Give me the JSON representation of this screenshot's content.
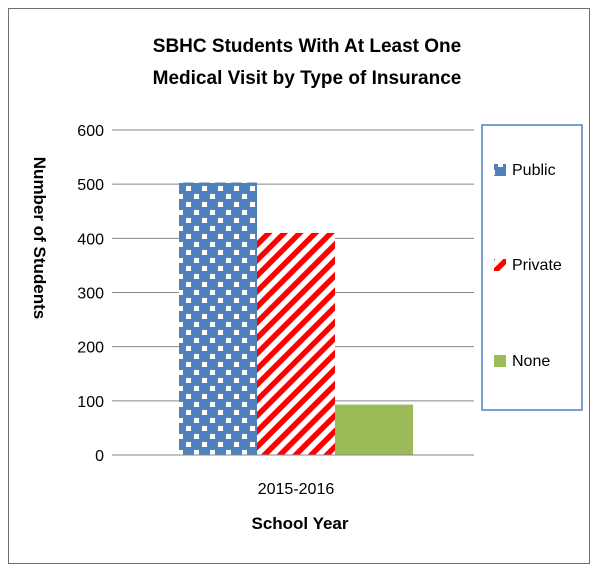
{
  "chart_data": {
    "type": "bar",
    "title_lines": [
      "SBHC Students With At Least One",
      "Medical Visit by Type of Insurance"
    ],
    "xlabel": "School Year",
    "ylabel": "Number of Students",
    "categories": [
      "2015-2016"
    ],
    "ylim": [
      0,
      600
    ],
    "yticks": [
      0,
      100,
      200,
      300,
      400,
      500,
      600
    ],
    "grid": true,
    "legend_position": "right",
    "series": [
      {
        "name": "Public",
        "values": [
          503
        ],
        "color": "#4f81bd",
        "pattern": "white-dots"
      },
      {
        "name": "Private",
        "values": [
          410
        ],
        "color": "#ff0000",
        "pattern": "diagonal-stripes"
      },
      {
        "name": "None",
        "values": [
          93
        ],
        "color": "#9bbb59",
        "pattern": "solid"
      }
    ]
  }
}
